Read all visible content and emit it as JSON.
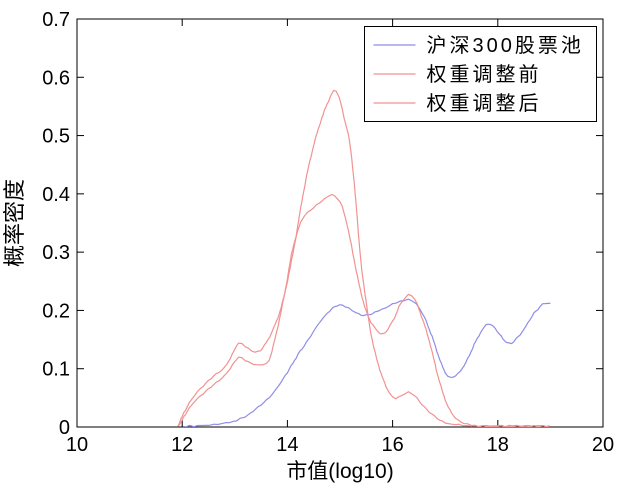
{
  "figure": {
    "background": "#ffffff",
    "frame_color": "#000000"
  },
  "chart_data": {
    "type": "line",
    "title": "",
    "xlabel": "市值(log10)",
    "ylabel": "概率密度",
    "xlim": [
      10,
      20
    ],
    "ylim": [
      0,
      0.7
    ],
    "xticks": [
      "10",
      "12",
      "14",
      "16",
      "18",
      "20"
    ],
    "yticks": [
      "0",
      "0.1",
      "0.2",
      "0.3",
      "0.4",
      "0.5",
      "0.6",
      "0.7"
    ],
    "grid": false,
    "legend_position": "top-right",
    "series": [
      {
        "id": "csi300",
        "name": "沪深300股票池",
        "color": "#8e8ee7",
        "points": [
          [
            12.02,
            0.001
          ],
          [
            12.3,
            0.002
          ],
          [
            12.6,
            0.004
          ],
          [
            12.9,
            0.008
          ],
          [
            13.1,
            0.014
          ],
          [
            13.3,
            0.024
          ],
          [
            13.5,
            0.038
          ],
          [
            13.76,
            0.062
          ],
          [
            14.0,
            0.094
          ],
          [
            14.2,
            0.124
          ],
          [
            14.4,
            0.15
          ],
          [
            14.6,
            0.178
          ],
          [
            14.8,
            0.199
          ],
          [
            14.95,
            0.209
          ],
          [
            15.1,
            0.206
          ],
          [
            15.3,
            0.197
          ],
          [
            15.45,
            0.191
          ],
          [
            15.6,
            0.194
          ],
          [
            15.8,
            0.202
          ],
          [
            16.0,
            0.211
          ],
          [
            16.15,
            0.216
          ],
          [
            16.3,
            0.218
          ],
          [
            16.45,
            0.211
          ],
          [
            16.6,
            0.189
          ],
          [
            16.75,
            0.155
          ],
          [
            16.9,
            0.115
          ],
          [
            17.0,
            0.094
          ],
          [
            17.1,
            0.084
          ],
          [
            17.25,
            0.092
          ],
          [
            17.4,
            0.112
          ],
          [
            17.55,
            0.141
          ],
          [
            17.7,
            0.166
          ],
          [
            17.82,
            0.177
          ],
          [
            17.95,
            0.169
          ],
          [
            18.1,
            0.151
          ],
          [
            18.22,
            0.143
          ],
          [
            18.35,
            0.151
          ],
          [
            18.5,
            0.168
          ],
          [
            18.65,
            0.19
          ],
          [
            18.8,
            0.206
          ],
          [
            18.9,
            0.212
          ],
          [
            19.0,
            0.212
          ]
        ]
      },
      {
        "id": "pre-adjust",
        "name": "权重调整前",
        "color": "#f19292",
        "points": [
          [
            11.92,
            0.002
          ],
          [
            12.0,
            0.018
          ],
          [
            12.1,
            0.036
          ],
          [
            12.25,
            0.056
          ],
          [
            12.4,
            0.071
          ],
          [
            12.6,
            0.087
          ],
          [
            12.8,
            0.102
          ],
          [
            12.95,
            0.124
          ],
          [
            13.07,
            0.144
          ],
          [
            13.2,
            0.139
          ],
          [
            13.32,
            0.131
          ],
          [
            13.45,
            0.129
          ],
          [
            13.6,
            0.145
          ],
          [
            13.75,
            0.172
          ],
          [
            13.88,
            0.205
          ],
          [
            14.0,
            0.25
          ],
          [
            14.15,
            0.32
          ],
          [
            14.3,
            0.4
          ],
          [
            14.45,
            0.465
          ],
          [
            14.6,
            0.515
          ],
          [
            14.75,
            0.553
          ],
          [
            14.88,
            0.576
          ],
          [
            14.97,
            0.569
          ],
          [
            15.08,
            0.53
          ],
          [
            15.18,
            0.49
          ],
          [
            15.28,
            0.41
          ],
          [
            15.38,
            0.3
          ],
          [
            15.48,
            0.225
          ],
          [
            15.6,
            0.155
          ],
          [
            15.72,
            0.11
          ],
          [
            15.85,
            0.075
          ],
          [
            16.0,
            0.051
          ],
          [
            16.12,
            0.051
          ],
          [
            16.3,
            0.059
          ],
          [
            16.42,
            0.053
          ],
          [
            16.55,
            0.04
          ],
          [
            16.7,
            0.025
          ],
          [
            16.85,
            0.015
          ],
          [
            17.0,
            0.008
          ],
          [
            17.2,
            0.004
          ],
          [
            17.5,
            0.002
          ],
          [
            18.0,
            0.002
          ],
          [
            18.5,
            0.002
          ],
          [
            18.98,
            0.002
          ]
        ]
      },
      {
        "id": "post-adjust",
        "name": "权重调整后",
        "color": "#f19292",
        "points": [
          [
            11.92,
            0.001
          ],
          [
            12.0,
            0.012
          ],
          [
            12.1,
            0.028
          ],
          [
            12.25,
            0.045
          ],
          [
            12.4,
            0.058
          ],
          [
            12.6,
            0.072
          ],
          [
            12.8,
            0.088
          ],
          [
            12.95,
            0.105
          ],
          [
            13.07,
            0.12
          ],
          [
            13.2,
            0.115
          ],
          [
            13.35,
            0.108
          ],
          [
            13.5,
            0.107
          ],
          [
            13.65,
            0.115
          ],
          [
            13.8,
            0.165
          ],
          [
            13.95,
            0.23
          ],
          [
            14.1,
            0.305
          ],
          [
            14.25,
            0.35
          ],
          [
            14.35,
            0.365
          ],
          [
            14.5,
            0.377
          ],
          [
            14.7,
            0.39
          ],
          [
            14.85,
            0.399
          ],
          [
            15.0,
            0.386
          ],
          [
            15.1,
            0.36
          ],
          [
            15.22,
            0.31
          ],
          [
            15.35,
            0.25
          ],
          [
            15.5,
            0.198
          ],
          [
            15.65,
            0.172
          ],
          [
            15.82,
            0.16
          ],
          [
            16.0,
            0.181
          ],
          [
            16.15,
            0.211
          ],
          [
            16.3,
            0.226
          ],
          [
            16.42,
            0.219
          ],
          [
            16.55,
            0.19
          ],
          [
            16.7,
            0.147
          ],
          [
            16.85,
            0.092
          ],
          [
            17.0,
            0.047
          ],
          [
            17.15,
            0.02
          ],
          [
            17.3,
            0.009
          ],
          [
            17.5,
            0.003
          ],
          [
            17.8,
            0.001
          ],
          [
            18.2,
            0.001
          ],
          [
            18.6,
            0.001
          ],
          [
            18.98,
            0.001
          ]
        ]
      }
    ]
  }
}
